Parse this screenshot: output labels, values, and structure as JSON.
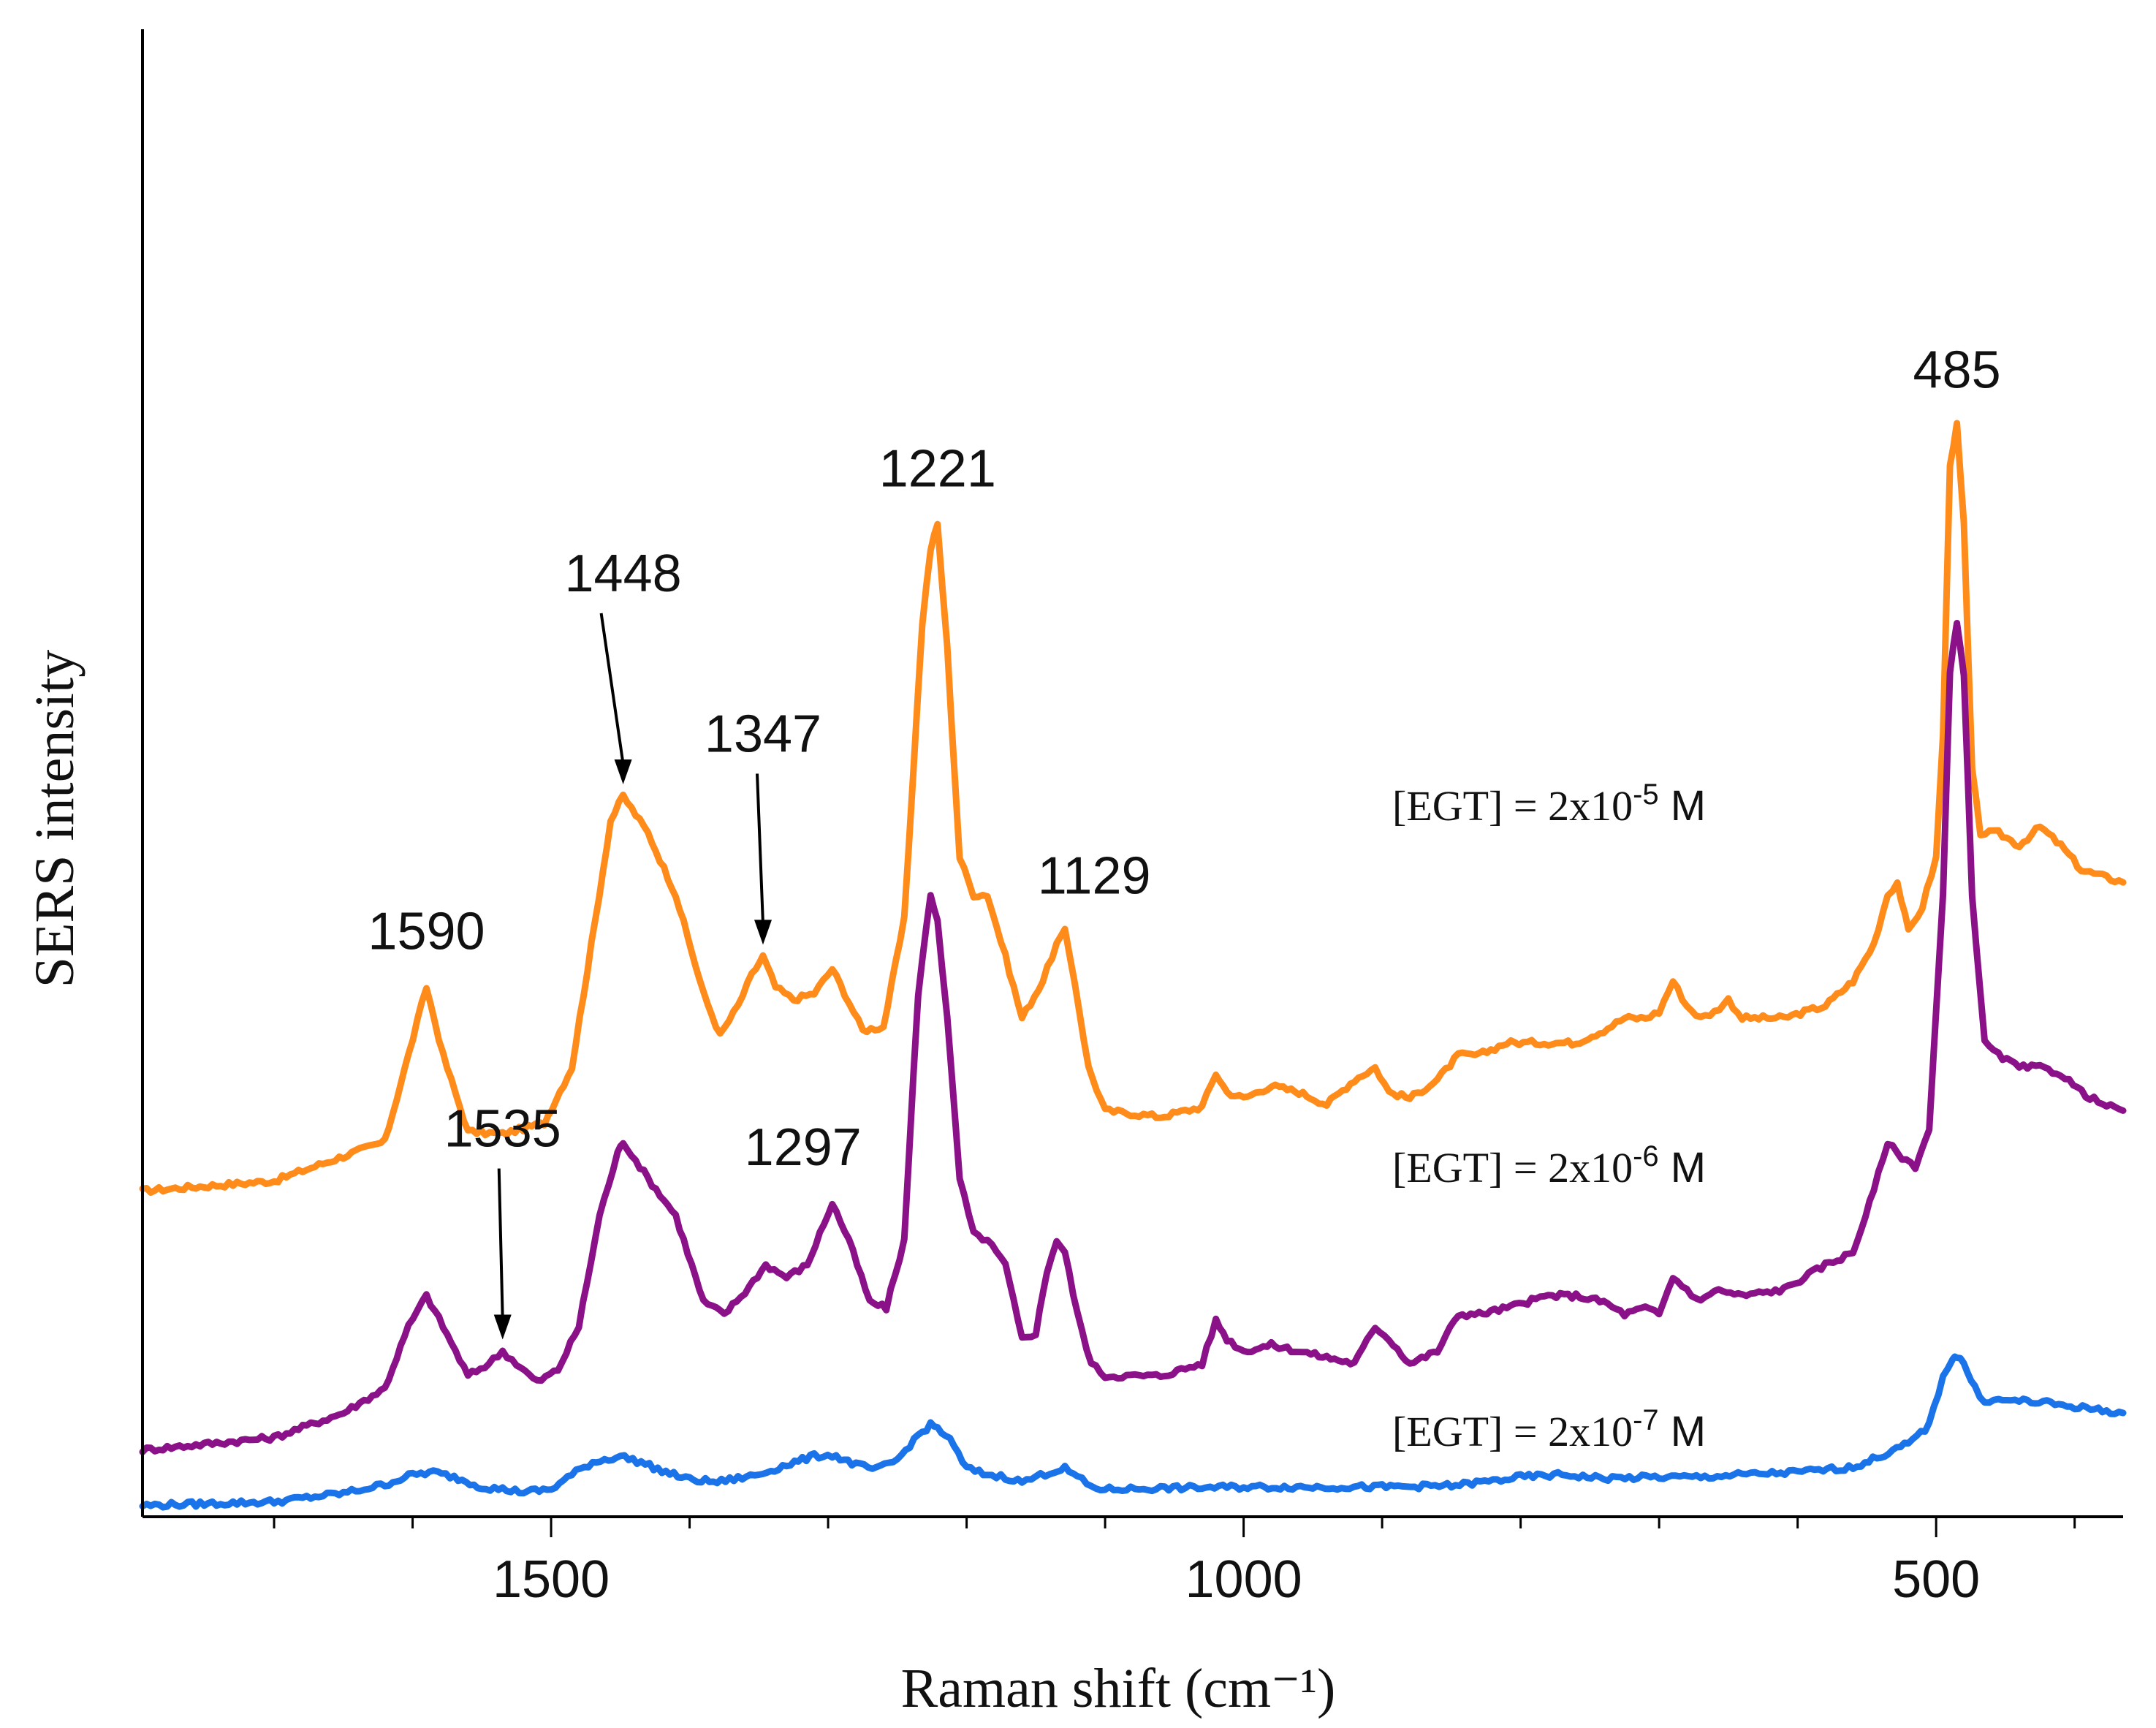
{
  "chart_data": {
    "type": "line",
    "title": "",
    "xlabel": "Raman shift (cm⁻¹)",
    "ylabel": "SERS intensity",
    "x_reversed": true,
    "xlim": [
      1795,
      365
    ],
    "ylim": [
      0,
      100
    ],
    "x_ticks": [
      1500,
      1000,
      500
    ],
    "x_tick_labels": [
      "1500",
      "1000",
      "500"
    ],
    "y_ticks_shown": false,
    "series": [
      {
        "name": "[EGT] = 2x10-5 M",
        "color": "#ff8c1a",
        "label_text": "[EGT] = 2x10",
        "label_exp": "-5",
        "label_unit": " M",
        "points": [
          [
            1795,
            26
          ],
          [
            1700,
            26.8
          ],
          [
            1650,
            28.8
          ],
          [
            1620,
            30
          ],
          [
            1603,
            37
          ],
          [
            1590,
            42.5
          ],
          [
            1578,
            37
          ],
          [
            1560,
            30.8
          ],
          [
            1535,
            30.6
          ],
          [
            1505,
            31.5
          ],
          [
            1485,
            36
          ],
          [
            1468,
            48
          ],
          [
            1457,
            56
          ],
          [
            1448,
            58
          ],
          [
            1430,
            55
          ],
          [
            1410,
            50
          ],
          [
            1390,
            42
          ],
          [
            1378,
            38.6
          ],
          [
            1365,
            41
          ],
          [
            1355,
            43.5
          ],
          [
            1347,
            45
          ],
          [
            1338,
            42.5
          ],
          [
            1325,
            41.5
          ],
          [
            1310,
            42
          ],
          [
            1297,
            44
          ],
          [
            1288,
            42
          ],
          [
            1275,
            39
          ],
          [
            1260,
            39.3
          ],
          [
            1245,
            48
          ],
          [
            1232,
            72
          ],
          [
            1226,
            78
          ],
          [
            1221,
            80
          ],
          [
            1214,
            70
          ],
          [
            1205,
            53
          ],
          [
            1195,
            50
          ],
          [
            1185,
            50
          ],
          [
            1172,
            45
          ],
          [
            1160,
            40
          ],
          [
            1145,
            43
          ],
          [
            1135,
            46
          ],
          [
            1129,
            47
          ],
          [
            1122,
            43
          ],
          [
            1112,
            36
          ],
          [
            1100,
            32.5
          ],
          [
            1060,
            32
          ],
          [
            1030,
            32.8
          ],
          [
            1020,
            35.5
          ],
          [
            1012,
            34
          ],
          [
            1000,
            33.5
          ],
          [
            980,
            34.5
          ],
          [
            960,
            34
          ],
          [
            940,
            33
          ],
          [
            920,
            35
          ],
          [
            905,
            36
          ],
          [
            895,
            34
          ],
          [
            880,
            33.5
          ],
          [
            860,
            35
          ],
          [
            845,
            37
          ],
          [
            830,
            37
          ],
          [
            810,
            38
          ],
          [
            780,
            38
          ],
          [
            760,
            38
          ],
          [
            740,
            39
          ],
          [
            725,
            40
          ],
          [
            710,
            40
          ],
          [
            700,
            40.5
          ],
          [
            690,
            43
          ],
          [
            680,
            41
          ],
          [
            670,
            40
          ],
          [
            660,
            40.5
          ],
          [
            650,
            41.5
          ],
          [
            640,
            40
          ],
          [
            610,
            40
          ],
          [
            580,
            41
          ],
          [
            560,
            43
          ],
          [
            545,
            46
          ],
          [
            535,
            50
          ],
          [
            528,
            51
          ],
          [
            520,
            47
          ],
          [
            510,
            49
          ],
          [
            500,
            53
          ],
          [
            495,
            63
          ],
          [
            490,
            85
          ],
          [
            485,
            88
          ],
          [
            480,
            80
          ],
          [
            474,
            60
          ],
          [
            468,
            55
          ],
          [
            455,
            55
          ],
          [
            440,
            54
          ],
          [
            425,
            55.5
          ],
          [
            410,
            54
          ],
          [
            395,
            52
          ],
          [
            380,
            51.5
          ],
          [
            365,
            51
          ]
        ]
      },
      {
        "name": "[EGT] = 2x10-6 M",
        "color": "#8b1188",
        "label_text": "[EGT] = 2x10",
        "label_exp": "-6",
        "label_unit": " M",
        "points": [
          [
            1795,
            5
          ],
          [
            1700,
            6
          ],
          [
            1650,
            8
          ],
          [
            1620,
            10
          ],
          [
            1603,
            15
          ],
          [
            1590,
            17.5
          ],
          [
            1578,
            15
          ],
          [
            1560,
            11
          ],
          [
            1545,
            12
          ],
          [
            1535,
            13
          ],
          [
            1525,
            12
          ],
          [
            1510,
            10.5
          ],
          [
            1495,
            11.5
          ],
          [
            1480,
            15
          ],
          [
            1465,
            24
          ],
          [
            1452,
            29
          ],
          [
            1448,
            30
          ],
          [
            1430,
            27
          ],
          [
            1410,
            24
          ],
          [
            1390,
            17
          ],
          [
            1375,
            16
          ],
          [
            1360,
            17.8
          ],
          [
            1345,
            20
          ],
          [
            1330,
            19
          ],
          [
            1315,
            20
          ],
          [
            1297,
            25
          ],
          [
            1285,
            22
          ],
          [
            1270,
            17
          ],
          [
            1258,
            16.5
          ],
          [
            1245,
            22
          ],
          [
            1235,
            42
          ],
          [
            1226,
            50
          ],
          [
            1221,
            48
          ],
          [
            1214,
            40
          ],
          [
            1205,
            27
          ],
          [
            1195,
            22.5
          ],
          [
            1185,
            22
          ],
          [
            1172,
            20
          ],
          [
            1160,
            14
          ],
          [
            1150,
            14.5
          ],
          [
            1142,
            19.5
          ],
          [
            1135,
            22
          ],
          [
            1129,
            21
          ],
          [
            1120,
            16
          ],
          [
            1110,
            12
          ],
          [
            1100,
            11
          ],
          [
            1060,
            11
          ],
          [
            1030,
            12
          ],
          [
            1020,
            15.5
          ],
          [
            1012,
            14
          ],
          [
            1000,
            13
          ],
          [
            980,
            13.5
          ],
          [
            960,
            13
          ],
          [
            940,
            12.5
          ],
          [
            920,
            12
          ],
          [
            905,
            15
          ],
          [
            895,
            14
          ],
          [
            880,
            12
          ],
          [
            860,
            13
          ],
          [
            845,
            16
          ],
          [
            830,
            16
          ],
          [
            810,
            16.5
          ],
          [
            780,
            17.5
          ],
          [
            760,
            17.5
          ],
          [
            740,
            17
          ],
          [
            725,
            16
          ],
          [
            710,
            16.5
          ],
          [
            700,
            16
          ],
          [
            690,
            19
          ],
          [
            680,
            18
          ],
          [
            670,
            17
          ],
          [
            660,
            18
          ],
          [
            640,
            17.5
          ],
          [
            610,
            18
          ],
          [
            580,
            20
          ],
          [
            560,
            21
          ],
          [
            545,
            26
          ],
          [
            535,
            30
          ],
          [
            528,
            29
          ],
          [
            515,
            28
          ],
          [
            505,
            31
          ],
          [
            495,
            50
          ],
          [
            490,
            68
          ],
          [
            485,
            72
          ],
          [
            480,
            68
          ],
          [
            474,
            50
          ],
          [
            465,
            38
          ],
          [
            455,
            37
          ],
          [
            440,
            36
          ],
          [
            425,
            36
          ],
          [
            410,
            35.5
          ],
          [
            395,
            34
          ],
          [
            380,
            33
          ],
          [
            365,
            32.5
          ]
        ]
      },
      {
        "name": "[EGT] = 2x10-7 M",
        "color": "#1a73e8",
        "label_text": "[EGT]  = 2x10",
        "label_exp": "-7",
        "label_unit": " M",
        "points": [
          [
            1795,
            0.5
          ],
          [
            1700,
            0.8
          ],
          [
            1650,
            1.5
          ],
          [
            1620,
            2.2
          ],
          [
            1600,
            3.0
          ],
          [
            1585,
            3.2
          ],
          [
            1570,
            2.8
          ],
          [
            1550,
            2.0
          ],
          [
            1520,
            1.6
          ],
          [
            1500,
            1.8
          ],
          [
            1485,
            3.0
          ],
          [
            1470,
            4.0
          ],
          [
            1450,
            4.5
          ],
          [
            1435,
            4.0
          ],
          [
            1420,
            3.3
          ],
          [
            1400,
            2.6
          ],
          [
            1380,
            2.4
          ],
          [
            1350,
            3.0
          ],
          [
            1330,
            3.8
          ],
          [
            1310,
            4.5
          ],
          [
            1297,
            4.6
          ],
          [
            1280,
            3.8
          ],
          [
            1265,
            3.4
          ],
          [
            1250,
            4.2
          ],
          [
            1235,
            6.2
          ],
          [
            1226,
            7.0
          ],
          [
            1221,
            6.8
          ],
          [
            1212,
            5.8
          ],
          [
            1200,
            3.5
          ],
          [
            1185,
            3.0
          ],
          [
            1172,
            2.8
          ],
          [
            1160,
            2.4
          ],
          [
            1150,
            2.8
          ],
          [
            1140,
            3.2
          ],
          [
            1129,
            3.5
          ],
          [
            1120,
            2.8
          ],
          [
            1110,
            2.0
          ],
          [
            1100,
            1.8
          ],
          [
            1060,
            1.9
          ],
          [
            1000,
            2.0
          ],
          [
            950,
            2.0
          ],
          [
            900,
            2.0
          ],
          [
            850,
            2.1
          ],
          [
            820,
            2.5
          ],
          [
            800,
            2.8
          ],
          [
            770,
            3.0
          ],
          [
            740,
            2.7
          ],
          [
            700,
            2.8
          ],
          [
            670,
            2.8
          ],
          [
            640,
            3.0
          ],
          [
            600,
            3.2
          ],
          [
            560,
            3.6
          ],
          [
            540,
            4.5
          ],
          [
            520,
            5.5
          ],
          [
            505,
            7.0
          ],
          [
            495,
            11
          ],
          [
            488,
            12.5
          ],
          [
            485,
            12.6
          ],
          [
            480,
            12
          ],
          [
            472,
            10
          ],
          [
            465,
            9.0
          ],
          [
            455,
            9.0
          ],
          [
            440,
            9.0
          ],
          [
            420,
            8.8
          ],
          [
            400,
            8.5
          ],
          [
            380,
            8.2
          ],
          [
            365,
            8.0
          ]
        ]
      }
    ],
    "annotations": [
      {
        "text": "1590",
        "x": 1590,
        "y": 42.5,
        "arrow": false
      },
      {
        "text": "1448",
        "x": 1448,
        "y": 58,
        "arrow": true
      },
      {
        "text": "1347",
        "x": 1347,
        "y": 45,
        "arrow": true
      },
      {
        "text": "1221",
        "x": 1221,
        "y": 80,
        "arrow": false
      },
      {
        "text": "1129",
        "x": 1129,
        "y": 47,
        "arrow": false
      },
      {
        "text": "485",
        "x": 485,
        "y": 88,
        "arrow": false
      },
      {
        "text": "1297",
        "x": 1297,
        "y": 25,
        "arrow": false
      },
      {
        "text": "1535",
        "x": 1535,
        "y": 13,
        "arrow": true
      }
    ]
  }
}
